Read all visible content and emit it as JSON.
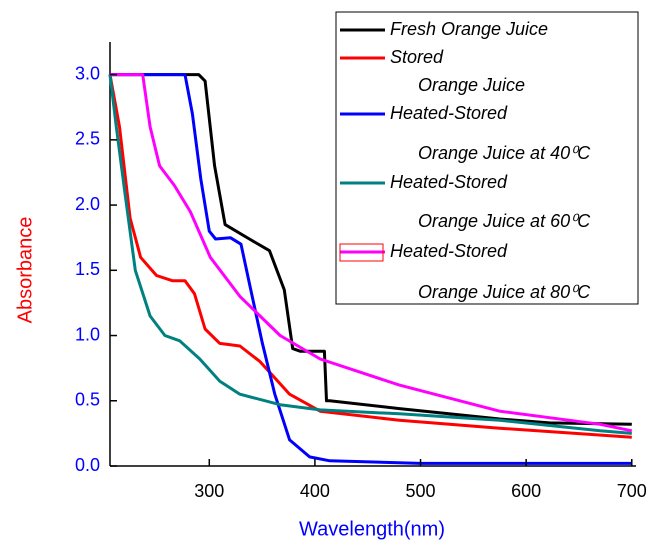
{
  "chart_data": {
    "type": "line",
    "xlabel": "Wavelength(nm)",
    "ylabel": "Absorbance",
    "xlim": [
      206,
      704
    ],
    "ylim": [
      0,
      3.25
    ],
    "xticks": [
      300,
      400,
      500,
      600,
      700
    ],
    "yticks": [
      {
        "value": 0,
        "label": "0.0"
      },
      {
        "value": 0.5,
        "label": "0.5"
      },
      {
        "value": 1,
        "label": "1.0"
      },
      {
        "value": 1.5,
        "label": "1.5"
      },
      {
        "value": 2,
        "label": "2.0"
      },
      {
        "value": 2.5,
        "label": "2.5"
      },
      {
        "value": 3,
        "label": "3.0"
      }
    ],
    "legend": "upper right",
    "series": [
      {
        "name": [
          "Fresh Orange Juice"
        ],
        "color": "#000000",
        "x": [
          206,
          290,
          296,
          305,
          315,
          338,
          357,
          371,
          379,
          386,
          409,
          411,
          414,
          480,
          575,
          622,
          700
        ],
        "values": [
          3.0,
          3.0,
          2.95,
          2.3,
          1.85,
          1.74,
          1.65,
          1.35,
          0.9,
          0.88,
          0.88,
          0.5,
          0.5,
          0.44,
          0.36,
          0.33,
          0.32
        ]
      },
      {
        "name": [
          "Stored",
          "Orange  Juice"
        ],
        "color": "#ff0000",
        "x": [
          206,
          215,
          225,
          235,
          250,
          265,
          277,
          286,
          296,
          310,
          329,
          348,
          376,
          405,
          480,
          575,
          700
        ],
        "values": [
          3.0,
          2.6,
          1.9,
          1.6,
          1.46,
          1.42,
          1.42,
          1.32,
          1.05,
          0.94,
          0.92,
          0.8,
          0.55,
          0.42,
          0.35,
          0.29,
          0.22
        ]
      },
      {
        "name": [
          "Heated-Stored",
          "Orange  Juice at 40⁰C"
        ],
        "color": "#0000ff",
        "x": [
          206,
          277,
          284,
          292,
          300,
          306,
          320,
          330,
          338,
          350,
          362,
          376,
          395,
          414,
          500,
          700
        ],
        "values": [
          3.0,
          3.0,
          2.7,
          2.2,
          1.8,
          1.74,
          1.75,
          1.7,
          1.4,
          0.95,
          0.55,
          0.2,
          0.07,
          0.04,
          0.02,
          0.02
        ]
      },
      {
        "name": [
          "Heated-Stored",
          "Orange  Juice at 60⁰C"
        ],
        "color": "#008080",
        "x": [
          206,
          212,
          220,
          230,
          244,
          258,
          272,
          291,
          310,
          329,
          367,
          405,
          480,
          575,
          670,
          700
        ],
        "values": [
          3.0,
          2.6,
          2.1,
          1.5,
          1.15,
          1.0,
          0.96,
          0.82,
          0.65,
          0.55,
          0.47,
          0.43,
          0.4,
          0.35,
          0.27,
          0.25
        ]
      },
      {
        "name": [
          "Heated-Stored",
          "Orange  Juice at 80⁰C"
        ],
        "color": "#ff00ff",
        "x": [
          206,
          237,
          244,
          253,
          267,
          282,
          301,
          329,
          367,
          405,
          480,
          575,
          670,
          700
        ],
        "values": [
          3.0,
          3.0,
          2.6,
          2.3,
          2.15,
          1.95,
          1.6,
          1.3,
          1.0,
          0.82,
          0.62,
          0.42,
          0.32,
          0.27
        ]
      }
    ]
  }
}
